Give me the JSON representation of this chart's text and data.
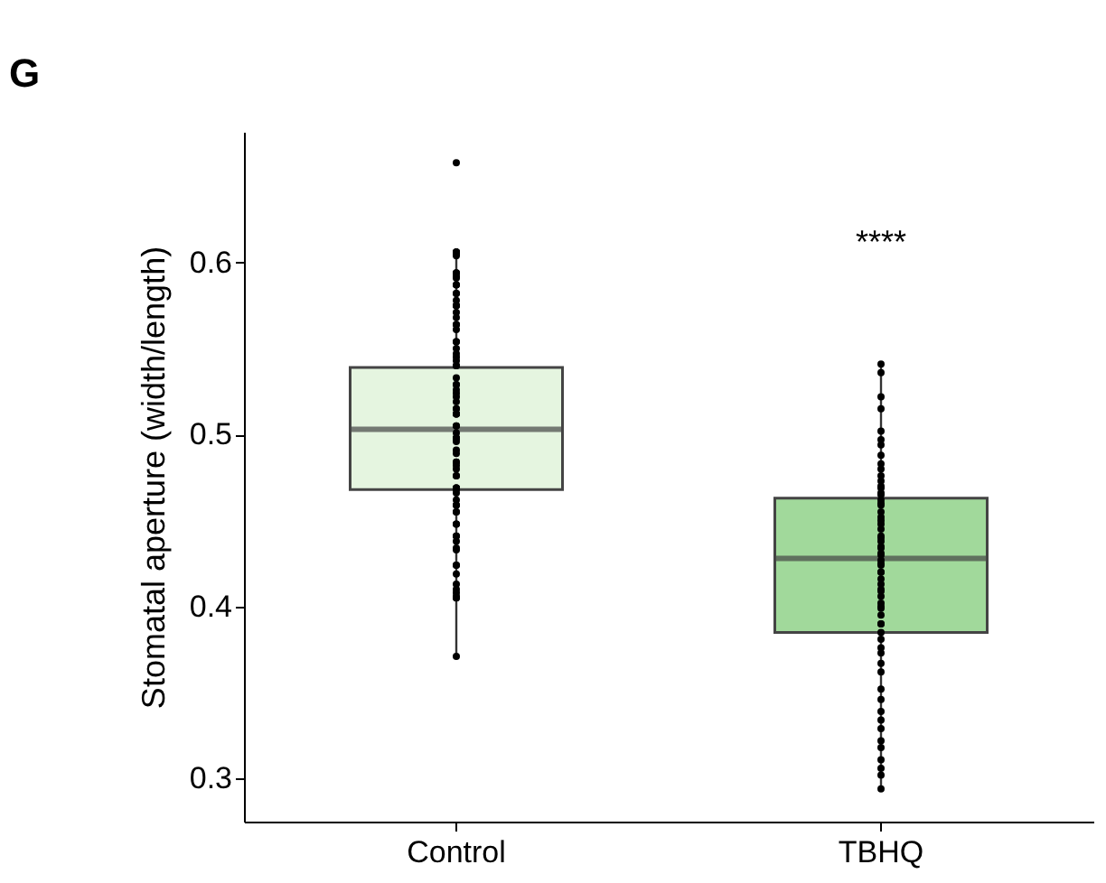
{
  "chart_data": {
    "type": "box",
    "title": "G",
    "ylabel": "Stomatal aperture (width/length)",
    "categories": [
      "Control",
      "TBHQ"
    ],
    "ylim": [
      0.275,
      0.676
    ],
    "yticks": [
      0.3,
      0.4,
      0.5,
      0.6
    ],
    "grid": false,
    "colors": [
      "#e5f5e0",
      "#a1d99b"
    ],
    "boxes": [
      {
        "low": 0.371,
        "q1": 0.468,
        "median": 0.503,
        "q3": 0.539,
        "high": 0.606
      },
      {
        "low": 0.294,
        "q1": 0.385,
        "median": 0.428,
        "q3": 0.463,
        "high": 0.541
      }
    ],
    "annotations": [
      "****"
    ],
    "series": [
      {
        "type": "scatter",
        "color": "#000000",
        "marker": "circle",
        "x": [
          "Control",
          "Control",
          "Control",
          "Control",
          "Control",
          "Control",
          "Control",
          "Control",
          "Control",
          "Control",
          "Control",
          "Control",
          "Control",
          "Control",
          "Control",
          "Control",
          "Control",
          "Control",
          "Control",
          "Control",
          "Control",
          "Control",
          "Control",
          "Control",
          "Control",
          "Control",
          "Control",
          "Control",
          "Control",
          "Control",
          "Control",
          "Control",
          "Control",
          "Control",
          "Control",
          "Control",
          "Control",
          "Control",
          "Control",
          "Control",
          "Control",
          "Control",
          "Control",
          "Control",
          "Control",
          "Control",
          "Control",
          "Control",
          "Control",
          "Control",
          "Control",
          "Control",
          "Control",
          "Control",
          "Control",
          "Control",
          "Control",
          "Control",
          "Control",
          "Control",
          "Control",
          "Control",
          "Control",
          "Control",
          "Control",
          "Control",
          "Control",
          "Control",
          "Control",
          "Control",
          "Control",
          "Control",
          "Control",
          "Control",
          "Control",
          "Control",
          "Control",
          "Control",
          "Control",
          "Control",
          "Control",
          "Control",
          "Control",
          "Control",
          "Control",
          "Control",
          "TBHQ",
          "TBHQ",
          "TBHQ",
          "TBHQ",
          "TBHQ",
          "TBHQ",
          "TBHQ",
          "TBHQ",
          "TBHQ",
          "TBHQ",
          "TBHQ",
          "TBHQ",
          "TBHQ",
          "TBHQ",
          "TBHQ",
          "TBHQ",
          "TBHQ",
          "TBHQ",
          "TBHQ",
          "TBHQ",
          "TBHQ",
          "TBHQ",
          "TBHQ",
          "TBHQ",
          "TBHQ",
          "TBHQ",
          "TBHQ",
          "TBHQ",
          "TBHQ",
          "TBHQ",
          "TBHQ",
          "TBHQ",
          "TBHQ",
          "TBHQ",
          "TBHQ",
          "TBHQ",
          "TBHQ",
          "TBHQ",
          "TBHQ",
          "TBHQ",
          "TBHQ",
          "TBHQ",
          "TBHQ",
          "TBHQ",
          "TBHQ",
          "TBHQ",
          "TBHQ",
          "TBHQ",
          "TBHQ",
          "TBHQ",
          "TBHQ",
          "TBHQ",
          "TBHQ",
          "TBHQ",
          "TBHQ",
          "TBHQ",
          "TBHQ",
          "TBHQ",
          "TBHQ",
          "TBHQ",
          "TBHQ",
          "TBHQ",
          "TBHQ",
          "TBHQ"
        ],
        "values": [
          0.594,
          0.568,
          0.571,
          0.605,
          0.591,
          0.575,
          0.554,
          0.545,
          0.529,
          0.519,
          0.512,
          0.498,
          0.484,
          0.469,
          0.462,
          0.455,
          0.441,
          0.424,
          0.413,
          0.408,
          0.371,
          0.606,
          0.582,
          0.582,
          0.564,
          0.55,
          0.54,
          0.526,
          0.515,
          0.505,
          0.498,
          0.489,
          0.476,
          0.468,
          0.459,
          0.448,
          0.434,
          0.433,
          0.419,
          0.405,
          0.606,
          0.606,
          0.594,
          0.575,
          0.561,
          0.547,
          0.533,
          0.522,
          0.512,
          0.501,
          0.491,
          0.48,
          0.469,
          0.459,
          0.448,
          0.438,
          0.424,
          0.41,
          0.405,
          0.658,
          0.606,
          0.592,
          0.587,
          0.575,
          0.564,
          0.554,
          0.54,
          0.529,
          0.515,
          0.505,
          0.498,
          0.484,
          0.476,
          0.466,
          0.455,
          0.441,
          0.406,
          0.604,
          0.587,
          0.578,
          0.543,
          0.524,
          0.512,
          0.496,
          0.482,
          0.469,
          0.541,
          0.536,
          0.522,
          0.515,
          0.502,
          0.497,
          0.494,
          0.488,
          0.483,
          0.48,
          0.476,
          0.473,
          0.469,
          0.466,
          0.462,
          0.459,
          0.455,
          0.452,
          0.448,
          0.445,
          0.441,
          0.438,
          0.434,
          0.431,
          0.427,
          0.424,
          0.42,
          0.416,
          0.413,
          0.409,
          0.406,
          0.402,
          0.399,
          0.395,
          0.39,
          0.385,
          0.381,
          0.376,
          0.373,
          0.367,
          0.362,
          0.352,
          0.346,
          0.339,
          0.334,
          0.329,
          0.322,
          0.318,
          0.311,
          0.306,
          0.302,
          0.294,
          0.47,
          0.46,
          0.45,
          0.44,
          0.43,
          0.42,
          0.41,
          0.4,
          0.39,
          0.465,
          0.435,
          0.425
        ]
      }
    ]
  }
}
